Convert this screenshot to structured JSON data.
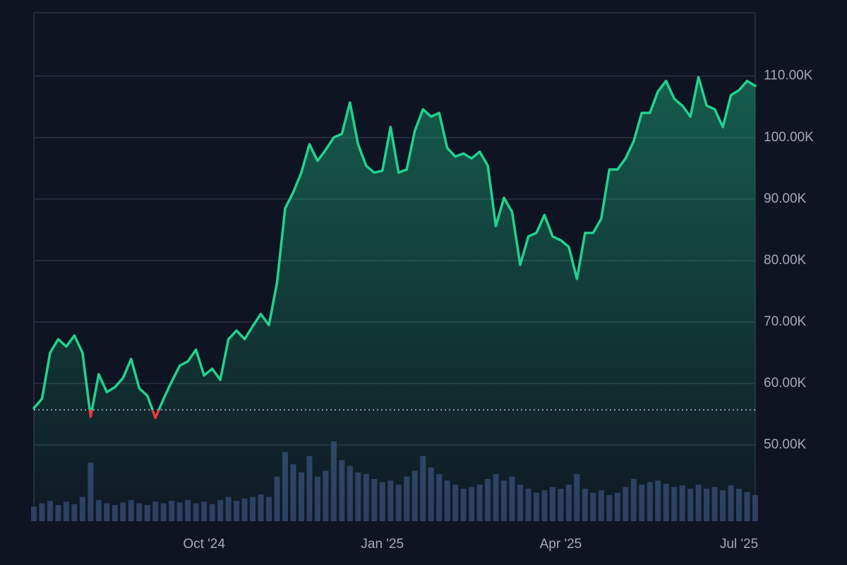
{
  "chart_data": {
    "type": "line",
    "categories": [
      null,
      null,
      null,
      null,
      null,
      null,
      null,
      null,
      null,
      null,
      null,
      null,
      null,
      null,
      null,
      null,
      null,
      null,
      null,
      null,
      null,
      "Oct '24",
      null,
      null,
      null,
      null,
      null,
      null,
      null,
      null,
      null,
      null,
      null,
      null,
      null,
      null,
      null,
      null,
      null,
      null,
      null,
      null,
      null,
      "Jan '25",
      null,
      null,
      null,
      null,
      null,
      null,
      null,
      null,
      null,
      null,
      null,
      null,
      null,
      null,
      null,
      null,
      null,
      null,
      null,
      null,
      null,
      "Apr '25",
      null,
      null,
      null,
      null,
      null,
      null,
      null,
      null,
      null,
      null,
      null,
      null,
      null,
      null,
      null,
      null,
      null,
      null,
      null,
      null,
      null,
      "Jul '25",
      null,
      null
    ],
    "series": [
      {
        "color": "#1fd38f",
        "negative_color": "#ea3943",
        "values": [
          56000,
          57500,
          65000,
          67200,
          66000,
          67800,
          65000,
          54600,
          61500,
          58600,
          59400,
          60900,
          64000,
          59200,
          58000,
          54400,
          57500,
          60300,
          62900,
          63600,
          65500,
          61300,
          62400,
          60600,
          67200,
          68600,
          67200,
          69300,
          71300,
          69500,
          76400,
          88500,
          91100,
          94300,
          98900,
          96200,
          98000,
          100000,
          100600,
          105700,
          98900,
          95400,
          94300,
          94600,
          101700,
          94300,
          94800,
          101100,
          104600,
          103400,
          104000,
          98300,
          96900,
          97400,
          96600,
          97700,
          95400,
          85600,
          90200,
          87900,
          79300,
          83900,
          84500,
          87400,
          83900,
          83300,
          82200,
          77000,
          84500,
          84500,
          86800,
          94800,
          94800,
          96600,
          99400,
          104000,
          104000,
          107500,
          109200,
          106300,
          105200,
          103400,
          109800,
          105200,
          104600,
          101700,
          106900,
          107700,
          109200,
          108400
        ]
      },
      {
        "color": "#35436f",
        "axis": "y2",
        "values": [
          18,
          22,
          25,
          20,
          24,
          21,
          30,
          72,
          26,
          22,
          20,
          23,
          26,
          22,
          20,
          24,
          22,
          25,
          23,
          26,
          22,
          24,
          21,
          26,
          30,
          25,
          28,
          30,
          33,
          30,
          55,
          85,
          70,
          60,
          80,
          55,
          62,
          98,
          75,
          68,
          60,
          58,
          52,
          48,
          50,
          45,
          55,
          62,
          80,
          66,
          58,
          50,
          45,
          40,
          42,
          45,
          52,
          58,
          50,
          55,
          45,
          40,
          35,
          38,
          42,
          40,
          45,
          58,
          40,
          35,
          38,
          32,
          35,
          42,
          52,
          45,
          48,
          50,
          46,
          42,
          44,
          40,
          45,
          40,
          42,
          38,
          44,
          40,
          36,
          32
        ]
      }
    ],
    "ylim": [
      37600,
      120300
    ],
    "yticks": [
      {
        "value": 50000,
        "label": "50.00K"
      },
      {
        "value": 60000,
        "label": "60.00K"
      },
      {
        "value": 70000,
        "label": "70.00K"
      },
      {
        "value": 80000,
        "label": "80.00K"
      },
      {
        "value": 90000,
        "label": "90.00K"
      },
      {
        "value": 100000,
        "label": "100.00K"
      },
      {
        "value": 110000,
        "label": "110.00K"
      }
    ],
    "y2lim": [
      0,
      100
    ],
    "baseline": 55700,
    "grid": true
  }
}
